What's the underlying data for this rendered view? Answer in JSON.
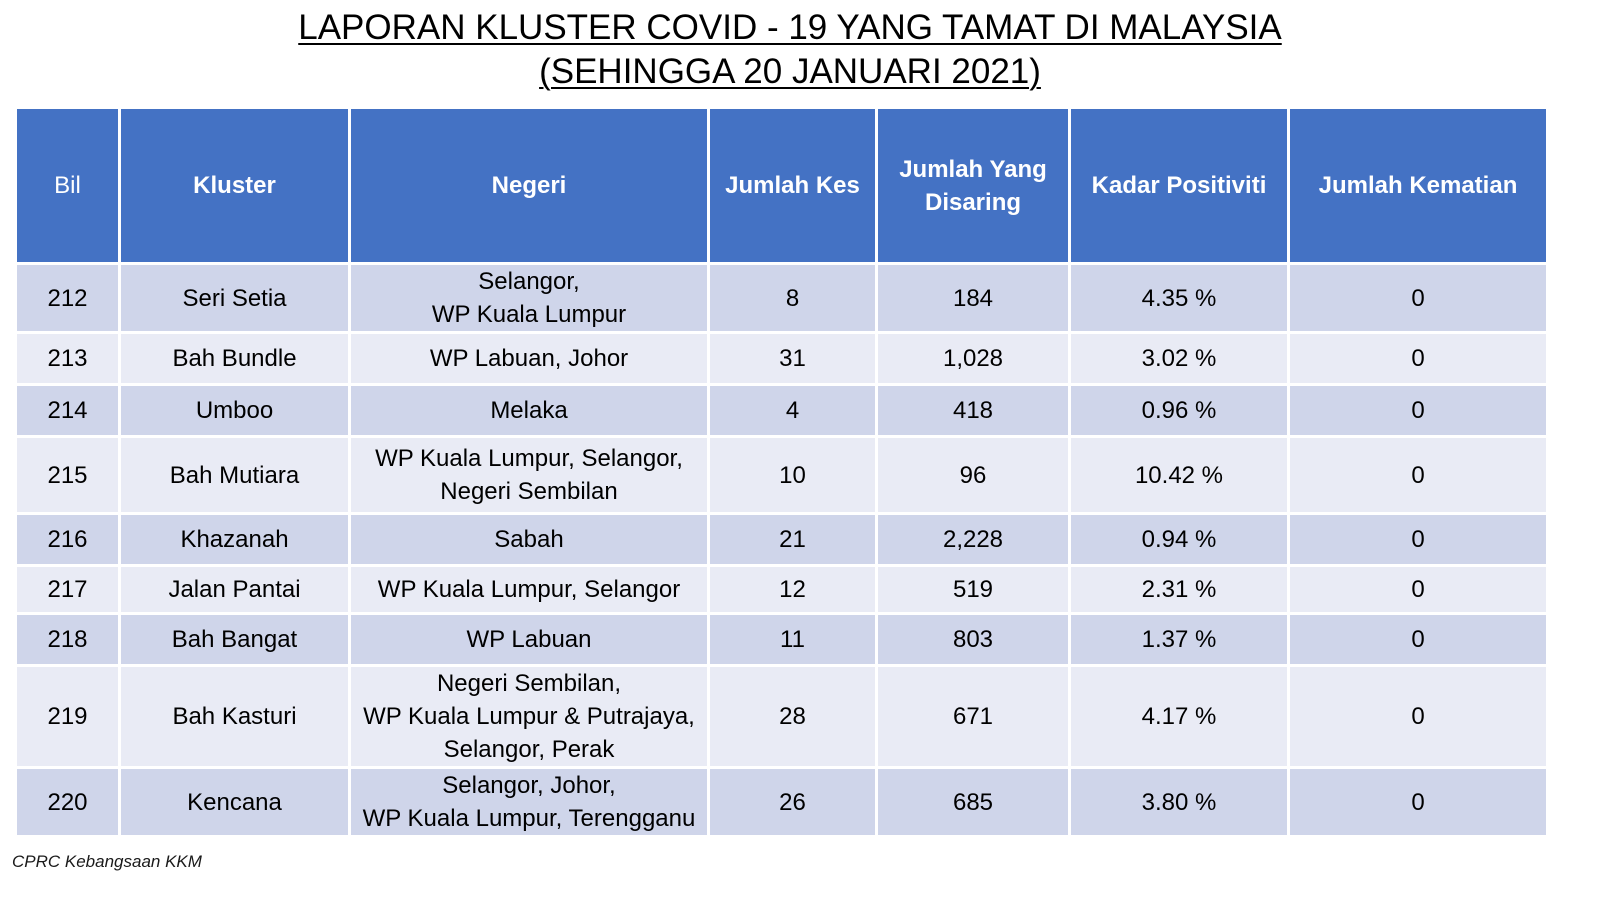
{
  "title": {
    "line1": "LAPORAN KLUSTER COVID - 19 YANG TAMAT DI MALAYSIA",
    "line2": "(SEHINGGA 20 JANUARI 2021)"
  },
  "table": {
    "headers": {
      "bil": "Bil",
      "kluster": "Kluster",
      "negeri": "Negeri",
      "jumlah_kes": "Jumlah Kes",
      "jumlah_disaring_1": "Jumlah Yang",
      "jumlah_disaring_2": "Disaring",
      "kadar_positiviti": "Kadar Positiviti",
      "jumlah_kematian": "Jumlah Kematian"
    },
    "rows": [
      {
        "bil": "212",
        "kluster": "Seri Setia",
        "negeri": [
          "Selangor,",
          "WP Kuala Lumpur"
        ],
        "kes": "8",
        "disaring": "184",
        "positiviti": "4.35 %",
        "kematian": "0"
      },
      {
        "bil": "213",
        "kluster": "Bah Bundle",
        "negeri": [
          "WP Labuan, Johor"
        ],
        "kes": "31",
        "disaring": "1,028",
        "positiviti": "3.02 %",
        "kematian": "0"
      },
      {
        "bil": "214",
        "kluster": "Umboo",
        "negeri": [
          "Melaka"
        ],
        "kes": "4",
        "disaring": "418",
        "positiviti": "0.96 %",
        "kematian": "0"
      },
      {
        "bil": "215",
        "kluster": "Bah Mutiara",
        "negeri": [
          "WP Kuala Lumpur, Selangor,",
          "Negeri Sembilan"
        ],
        "kes": "10",
        "disaring": "96",
        "positiviti": "10.42 %",
        "kematian": "0"
      },
      {
        "bil": "216",
        "kluster": "Khazanah",
        "negeri": [
          "Sabah"
        ],
        "kes": "21",
        "disaring": "2,228",
        "positiviti": "0.94 %",
        "kematian": "0"
      },
      {
        "bil": "217",
        "kluster": "Jalan Pantai",
        "negeri": [
          "WP Kuala Lumpur, Selangor"
        ],
        "kes": "12",
        "disaring": "519",
        "positiviti": "2.31 %",
        "kematian": "0"
      },
      {
        "bil": "218",
        "kluster": "Bah Bangat",
        "negeri": [
          "WP Labuan"
        ],
        "kes": "11",
        "disaring": "803",
        "positiviti": "1.37 %",
        "kematian": "0"
      },
      {
        "bil": "219",
        "kluster": "Bah Kasturi",
        "negeri": [
          "Negeri Sembilan,",
          "WP Kuala Lumpur & Putrajaya,",
          "Selangor, Perak"
        ],
        "kes": "28",
        "disaring": "671",
        "positiviti": "4.17 %",
        "kematian": "0"
      },
      {
        "bil": "220",
        "kluster": "Kencana",
        "negeri": [
          "Selangor,  Johor,",
          "WP Kuala Lumpur, Terengganu"
        ],
        "kes": "26",
        "disaring": "685",
        "positiviti": "3.80 %",
        "kematian": "0"
      }
    ]
  },
  "footer": {
    "source": "CPRC Kebangsaan KKM"
  }
}
